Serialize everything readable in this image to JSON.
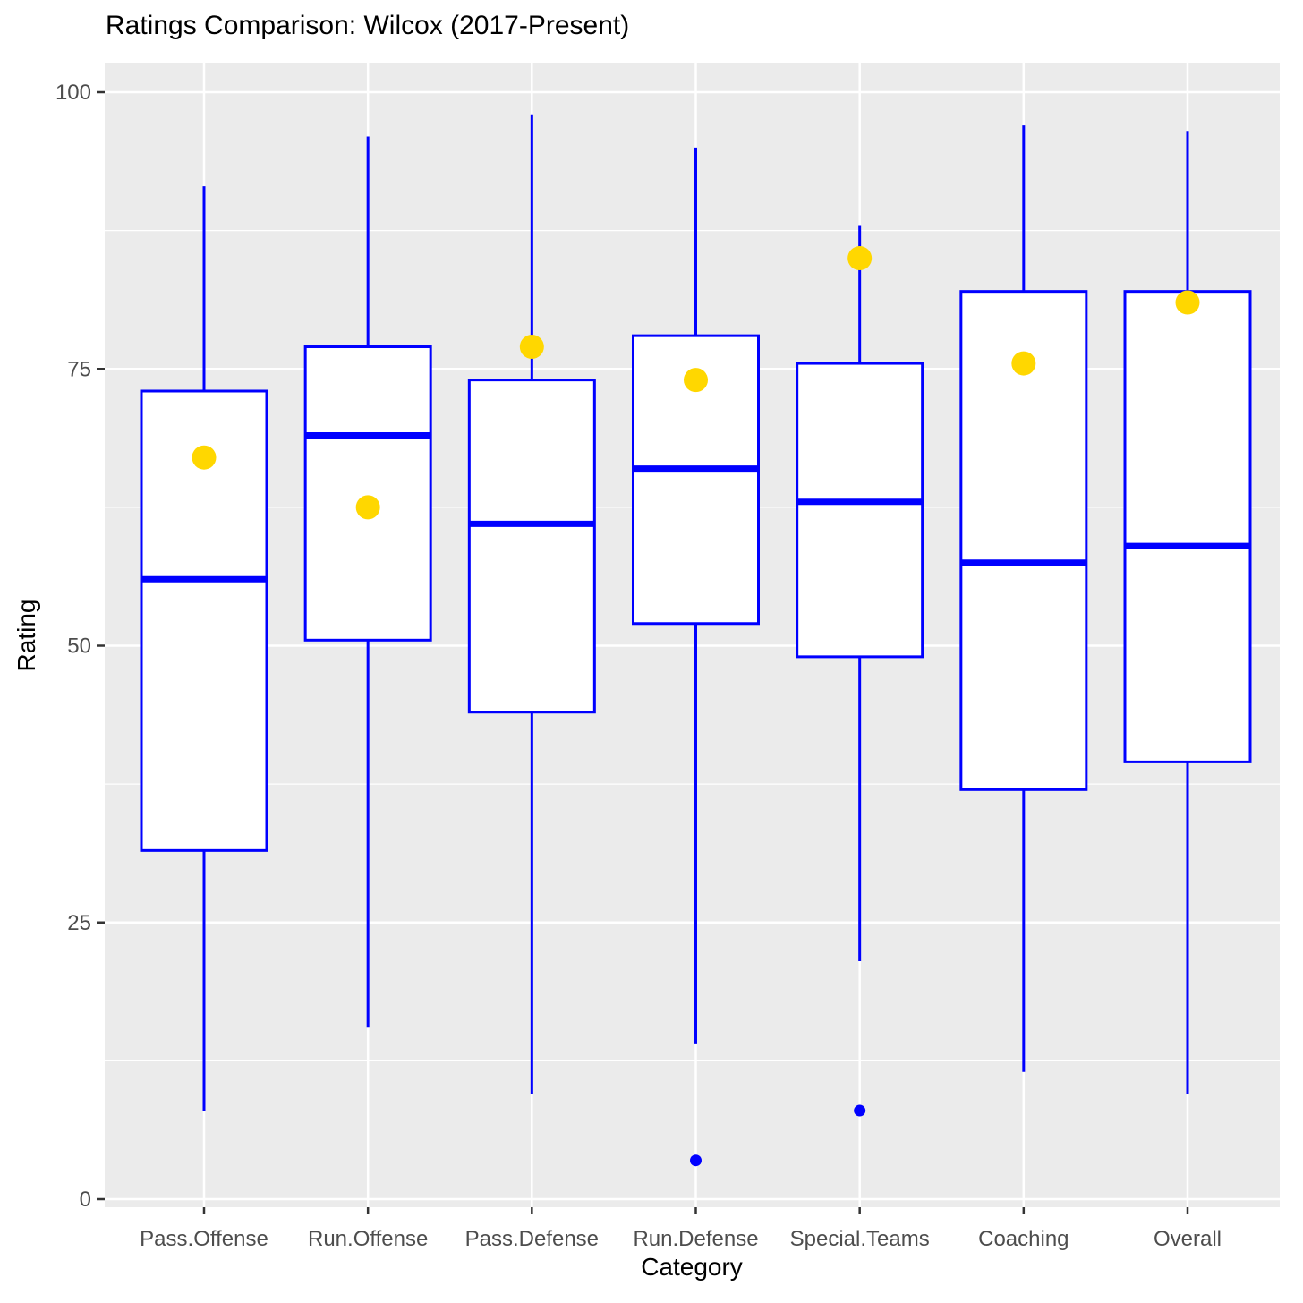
{
  "chart_data": {
    "type": "boxplot",
    "title": "Ratings Comparison: Wilcox (2017-Present)",
    "xlabel": "Category",
    "ylabel": "Rating",
    "ylim": [
      0,
      100
    ],
    "y_ticks": [
      0,
      25,
      50,
      75,
      100
    ],
    "y_minor_ticks": [
      12.5,
      37.5,
      62.5,
      87.5
    ],
    "grid": "on",
    "legend": "none",
    "panel_bg": "#EBEBEB",
    "gridline_color": "#FFFFFF",
    "box_color": "#0000FF",
    "box_fill": "#FFFFFF",
    "mean_dot_color": "#FFD700",
    "axis_text_color": "#4D4D4D",
    "categories": [
      "Pass.Offense",
      "Run.Offense",
      "Pass.Defense",
      "Run.Defense",
      "Special.Teams",
      "Coaching",
      "Overall"
    ],
    "series": [
      {
        "category": "Pass.Offense",
        "whisker_low": 8,
        "q1": 31.5,
        "median": 56,
        "q3": 73,
        "whisker_high": 91.5,
        "mean": 67,
        "outliers": []
      },
      {
        "category": "Run.Offense",
        "whisker_low": 15.5,
        "q1": 50.5,
        "median": 69,
        "q3": 77,
        "whisker_high": 96,
        "mean": 62.5,
        "outliers": []
      },
      {
        "category": "Pass.Defense",
        "whisker_low": 9.5,
        "q1": 44,
        "median": 61,
        "q3": 74,
        "whisker_high": 98,
        "mean": 77,
        "outliers": []
      },
      {
        "category": "Run.Defense",
        "whisker_low": 14,
        "q1": 52,
        "median": 66,
        "q3": 78,
        "whisker_high": 95,
        "mean": 74,
        "outliers": [
          3.5
        ]
      },
      {
        "category": "Special.Teams",
        "whisker_low": 21.5,
        "q1": 49,
        "median": 63,
        "q3": 75.5,
        "whisker_high": 88,
        "mean": 85,
        "outliers": [
          8
        ]
      },
      {
        "category": "Coaching",
        "whisker_low": 11.5,
        "q1": 37,
        "median": 57.5,
        "q3": 82,
        "whisker_high": 97,
        "mean": 75.5,
        "outliers": []
      },
      {
        "category": "Overall",
        "whisker_low": 9.5,
        "q1": 39.5,
        "median": 59,
        "q3": 82,
        "whisker_high": 96.5,
        "mean": 81,
        "outliers": []
      }
    ]
  }
}
